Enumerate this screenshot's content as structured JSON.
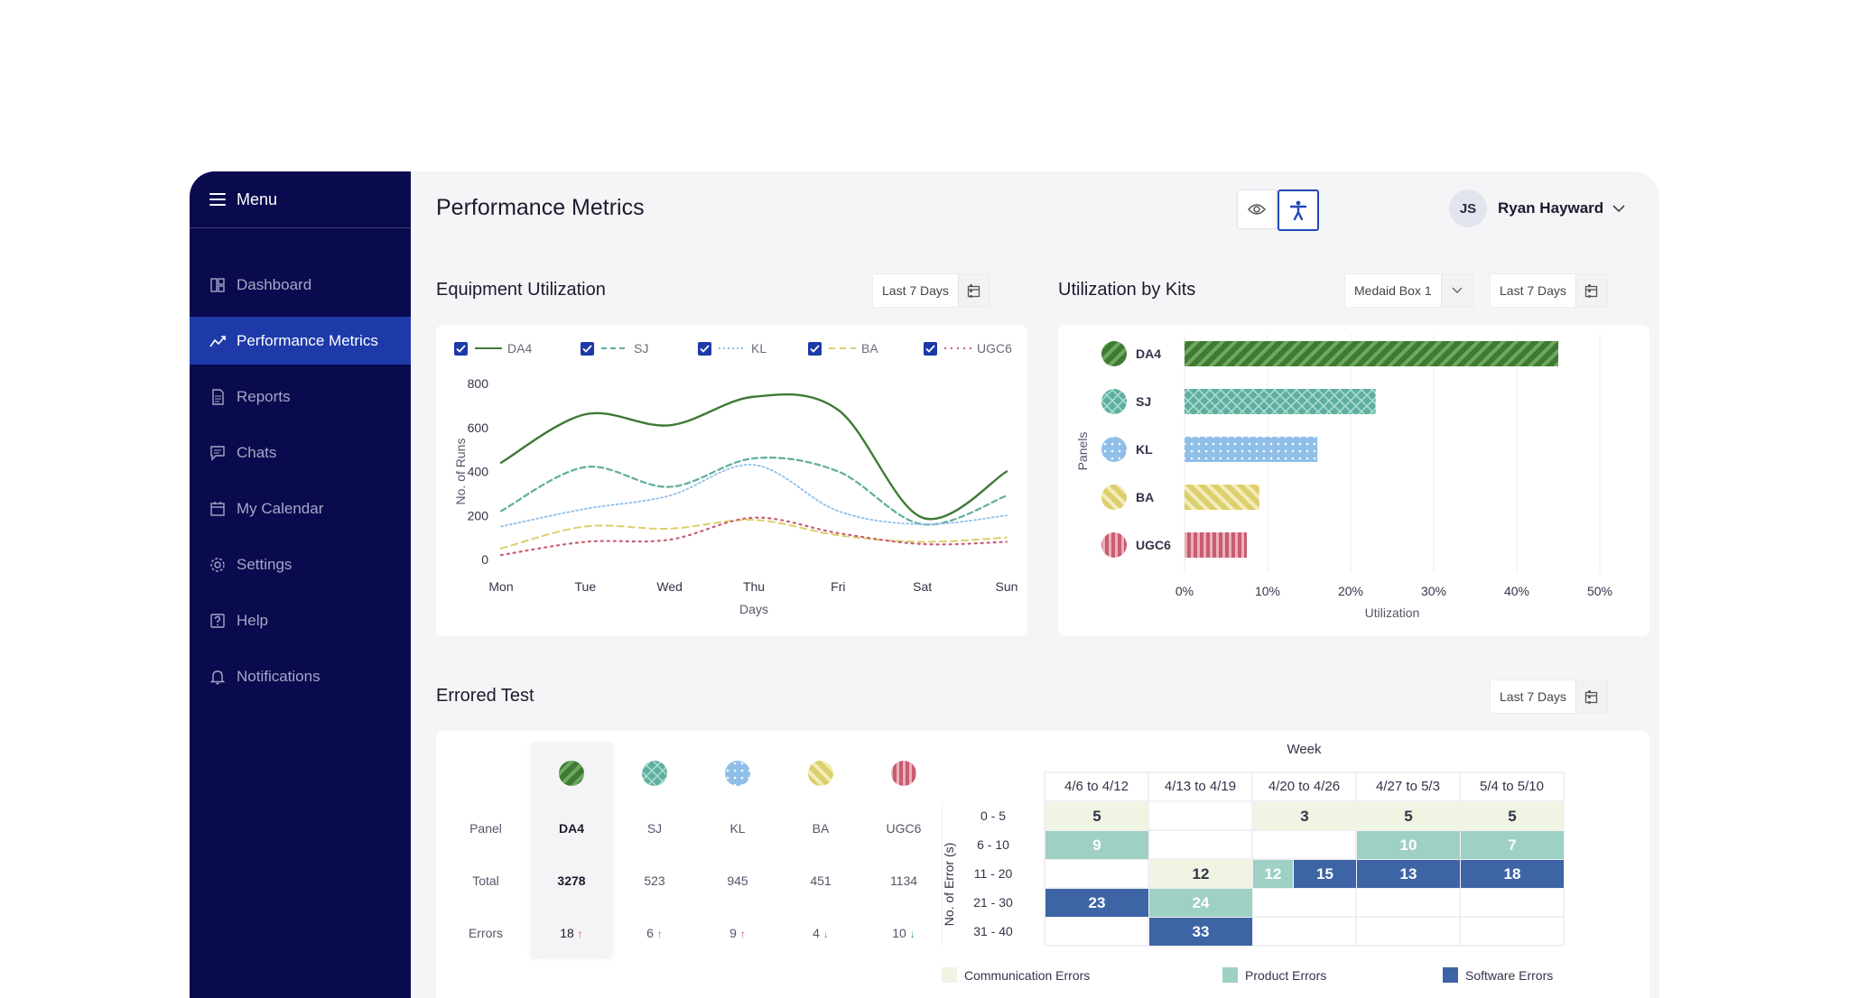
{
  "sidebar": {
    "menu_label": "Menu",
    "items": [
      {
        "label": "Dashboard",
        "icon": "dashboard-icon"
      },
      {
        "label": "Performance Metrics",
        "icon": "chart-trend-icon",
        "active": true
      },
      {
        "label": "Reports",
        "icon": "document-icon"
      },
      {
        "label": "Chats",
        "icon": "chat-icon"
      },
      {
        "label": "My Calendar",
        "icon": "calendar-icon"
      },
      {
        "label": "Settings",
        "icon": "gear-icon"
      },
      {
        "label": "Help",
        "icon": "help-icon"
      },
      {
        "label": "Notifications",
        "icon": "bell-icon"
      }
    ]
  },
  "header": {
    "title": "Performance Metrics",
    "user": {
      "initials": "JS",
      "name": "Ryan Hayward"
    }
  },
  "colors": {
    "sidebar": "#0a0a4e",
    "accent": "#1d3aa8",
    "DA4": "#3f7a35",
    "SJ": "#5fae9e",
    "KL": "#8fbfe8",
    "BA": "#dccf6d",
    "UGC6": "#c85d70",
    "comm": "#eff4e3",
    "product": "#9ed0c4",
    "software": "#3d65a5"
  },
  "equipment": {
    "title": "Equipment Utilization",
    "range_label": "Last 7 Days",
    "chart_data": {
      "type": "line",
      "x": [
        "Mon",
        "Tue",
        "Wed",
        "Thu",
        "Fri",
        "Sat",
        "Sun"
      ],
      "series": [
        {
          "name": "DA4",
          "values": [
            440,
            660,
            610,
            740,
            680,
            190,
            400
          ]
        },
        {
          "name": "SJ",
          "values": [
            220,
            420,
            330,
            460,
            400,
            160,
            290
          ]
        },
        {
          "name": "KL",
          "values": [
            150,
            230,
            290,
            430,
            220,
            160,
            200
          ]
        },
        {
          "name": "BA",
          "values": [
            50,
            150,
            140,
            180,
            110,
            80,
            100
          ]
        },
        {
          "name": "UGC6",
          "values": [
            20,
            80,
            90,
            190,
            120,
            70,
            80
          ]
        }
      ],
      "xlabel": "Days",
      "ylabel": "No. of Runs",
      "yticks": [
        0,
        200,
        400,
        600,
        800
      ],
      "ylim": [
        0,
        800
      ]
    }
  },
  "kits": {
    "title": "Utilization by Kits",
    "device_label": "Medaid Box 1",
    "range_label": "Last 7 Days",
    "chart_data": {
      "type": "bar",
      "orientation": "horizontal",
      "categories": [
        "DA4",
        "SJ",
        "KL",
        "BA",
        "UGC6"
      ],
      "values": [
        45,
        23,
        16,
        9,
        7.5
      ],
      "xlabel": "Utilization",
      "ylabel": "Panels",
      "xticks": [
        "0%",
        "10%",
        "20%",
        "30%",
        "40%",
        "50%"
      ],
      "xlim": [
        0,
        50
      ]
    }
  },
  "errored": {
    "title": "Errored Test",
    "range_label": "Last 7 Days",
    "row_labels": {
      "panel": "Panel",
      "total": "Total",
      "errors": "Errors"
    },
    "panels": [
      {
        "name": "DA4",
        "total": "3278",
        "errors": "18",
        "trend": "up",
        "arrow": "↑"
      },
      {
        "name": "SJ",
        "total": "523",
        "errors": "6",
        "trend": "up",
        "arrow": "↑"
      },
      {
        "name": "KL",
        "total": "945",
        "errors": "9",
        "trend": "up",
        "arrow": "↑"
      },
      {
        "name": "BA",
        "total": "451",
        "errors": "4",
        "trend": "down",
        "arrow": "↓"
      },
      {
        "name": "UGC6",
        "total": "1134",
        "errors": "10",
        "trend": "down",
        "arrow": "↓"
      }
    ],
    "heatmap": {
      "week_label": "Week",
      "y_axis_label": "No. of Error (s)",
      "weeks": [
        "4/6 to 4/12",
        "4/13 to 4/19",
        "4/20 to 4/26",
        "4/27 to 5/3",
        "5/4 to 5/10"
      ],
      "ranges": [
        "0 - 5",
        "6 - 10",
        "11 - 20",
        "21 - 30",
        "31 - 40"
      ],
      "cells": [
        {
          "row": 0,
          "week": 0,
          "value": "5",
          "type": "comm"
        },
        {
          "row": 0,
          "week": 2,
          "value": "3",
          "type": "comm"
        },
        {
          "row": 0,
          "week": 3,
          "value": "5",
          "type": "comm"
        },
        {
          "row": 0,
          "week": 4,
          "value": "5",
          "type": "comm"
        },
        {
          "row": 1,
          "week": 0,
          "value": "9",
          "type": "product"
        },
        {
          "row": 1,
          "week": 3,
          "value": "10",
          "type": "product"
        },
        {
          "row": 1,
          "week": 4,
          "value": "7",
          "type": "product"
        },
        {
          "row": 2,
          "week": 1,
          "value": "12",
          "type": "comm"
        },
        {
          "row": 2,
          "week": 2,
          "value": "12",
          "type": "product",
          "part": "left"
        },
        {
          "row": 2,
          "week": 2,
          "value": "15",
          "type": "software",
          "part": "right"
        },
        {
          "row": 2,
          "week": 3,
          "value": "13",
          "type": "software"
        },
        {
          "row": 2,
          "week": 4,
          "value": "18",
          "type": "software"
        },
        {
          "row": 3,
          "week": 0,
          "value": "23",
          "type": "software"
        },
        {
          "row": 3,
          "week": 1,
          "value": "24",
          "type": "product"
        },
        {
          "row": 4,
          "week": 1,
          "value": "33",
          "type": "software"
        }
      ],
      "legend": [
        {
          "label": "Communication Errors",
          "type": "comm"
        },
        {
          "label": "Product Errors",
          "type": "product"
        },
        {
          "label": "Software Errors",
          "type": "software"
        }
      ]
    }
  }
}
